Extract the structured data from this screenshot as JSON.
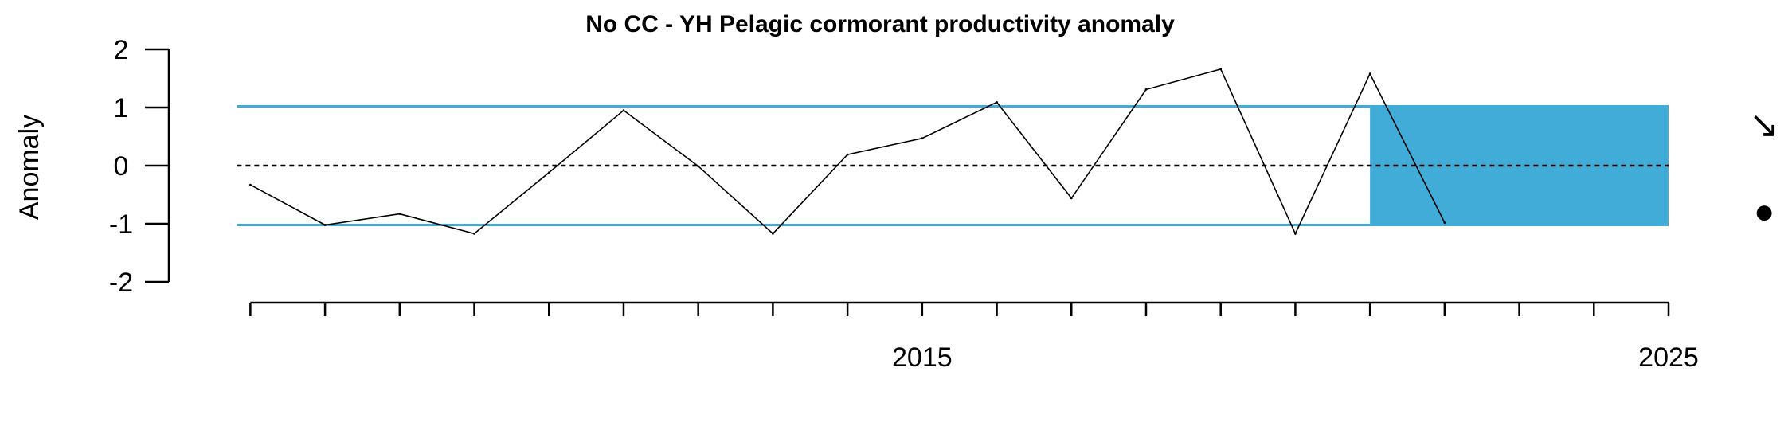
{
  "chart_data": {
    "type": "line",
    "title": "No CC - YH  Pelagic cormorant productivity anomaly",
    "xlabel": "",
    "ylabel": "Anomaly",
    "xlim": [
      2005.9,
      2025
    ],
    "ylim": [
      -2,
      2
    ],
    "yticks": [
      2,
      1,
      0,
      -1,
      -2
    ],
    "ytick_labels": [
      "2",
      "1",
      "0",
      "-1",
      "-2"
    ],
    "xticks": [
      2006,
      2007,
      2008,
      2009,
      2010,
      2011,
      2012,
      2013,
      2014,
      2015,
      2016,
      2017,
      2018,
      2019,
      2020,
      2021,
      2022,
      2023,
      2024,
      2025
    ],
    "xtick_labels": [
      {
        "x": 2015,
        "label": "2015"
      },
      {
        "x": 2025,
        "label": "2025"
      }
    ],
    "grid": false,
    "reference_lines": {
      "mean": 0,
      "upper_sd": 1.02,
      "lower_sd": -1.02,
      "color": "#42acd8"
    },
    "highlight_window": {
      "x_start": 2021,
      "x_end": 2025,
      "y_low": -1.02,
      "y_high": 1.02,
      "color": "#42acd8"
    },
    "series": [
      {
        "x": [
          2006,
          2007,
          2008,
          2009,
          2010,
          2011,
          2012,
          2013,
          2014,
          2015,
          2016,
          2017,
          2018,
          2019,
          2020,
          2021,
          2022,
          2023,
          2024,
          2025
        ],
        "values": [
          -0.33,
          -1.02,
          -0.83,
          -1.17,
          -0.12,
          0.95,
          -0.01,
          -1.17,
          0.19,
          0.47,
          1.09,
          -0.56,
          1.31,
          1.66,
          -1.17,
          1.58,
          -0.98,
          null,
          null,
          null
        ]
      }
    ],
    "trend_symbol": "↘",
    "mean_symbol": "●"
  }
}
